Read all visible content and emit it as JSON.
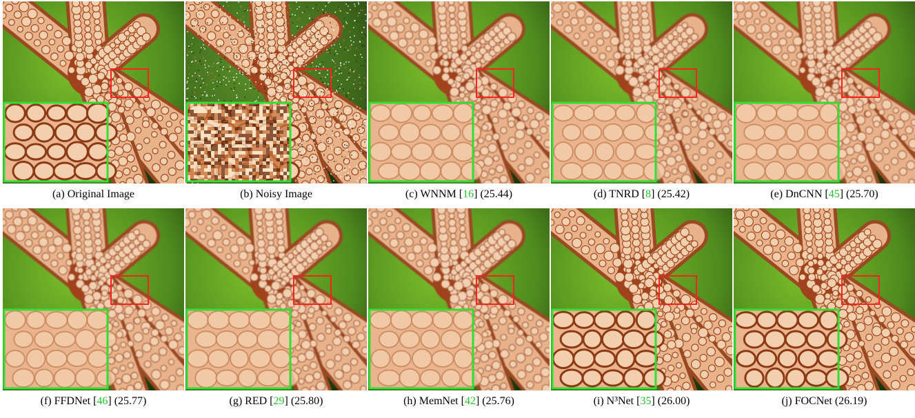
{
  "figure": {
    "panels": [
      {
        "prefix": "(a) Original Image",
        "cite": "",
        "suffix": "",
        "variant": "original"
      },
      {
        "prefix": "(b) Noisy Image",
        "cite": "",
        "suffix": "",
        "variant": "noisy"
      },
      {
        "prefix": "(c) WNNM [",
        "cite": "16",
        "suffix": "] (25.44)",
        "variant": "blur"
      },
      {
        "prefix": "(d) TNRD [",
        "cite": "8",
        "suffix": "] (25.42)",
        "variant": "blur"
      },
      {
        "prefix": "(e) DnCNN [",
        "cite": "45",
        "suffix": "] (25.70)",
        "variant": "blur"
      },
      {
        "prefix": "(f) FFDNet [",
        "cite": "46",
        "suffix": "] (25.77)",
        "variant": "blur"
      },
      {
        "prefix": "(g) RED [",
        "cite": "29",
        "suffix": "] (25.80)",
        "variant": "blur"
      },
      {
        "prefix": "(h) MemNet [",
        "cite": "42",
        "suffix": "] (25.76)",
        "variant": "blur"
      },
      {
        "prefix": "(i) N³Net [",
        "cite": "35",
        "suffix": "] (26.00)",
        "variant": "sharp"
      },
      {
        "prefix": "(j) FOCNet (26.19)",
        "cite": "",
        "suffix": "",
        "variant": "sharp"
      }
    ],
    "colors": {
      "zoom_box": "#ff2020",
      "inset_border": "#33dd33",
      "cite": "#22c22a"
    }
  }
}
